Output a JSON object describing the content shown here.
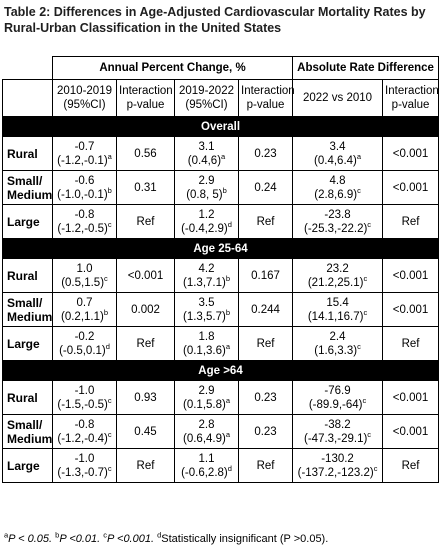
{
  "title": "Table 2: Differences in Age-Adjusted Cardiovascular Mortality Rates by Rural-Urban Classification in the United States",
  "header": {
    "group_apc": "Annual Percent Change, %",
    "group_ard": "Absolute Rate Difference",
    "col_2010_2019": "2010-2019 (95%CI)",
    "col_int_p1": "Interaction p-value",
    "col_2019_2022": "2019-2022 (95%CI)",
    "col_int_p2": "Interaction p-value",
    "col_2022_vs_2010": "2022 vs 2010",
    "col_int_p3": "Interaction p-value"
  },
  "sections": [
    {
      "name": "Overall",
      "rows": [
        {
          "label": "Rural",
          "apc1_est": "-0.7",
          "apc1_ci": "(-1.2,-0.1)",
          "apc1_sup": "a",
          "p1": "0.56",
          "apc2_est": "3.1",
          "apc2_ci": "(0.4,6)",
          "apc2_sup": "a",
          "p2": "0.23",
          "ard_est": "3.4",
          "ard_ci": "(0.4,6.4)",
          "ard_sup": "a",
          "p3": "<0.001"
        },
        {
          "label": "Small/ Medium",
          "apc1_est": "-0.6",
          "apc1_ci": "(-1.0,-0.1)",
          "apc1_sup": "b",
          "p1": "0.31",
          "apc2_est": "2.9",
          "apc2_ci": "(0.8, 5)",
          "apc2_sup": "b",
          "p2": "0.24",
          "ard_est": "4.8",
          "ard_ci": "(2.8,6.9)",
          "ard_sup": "c",
          "p3": "<0.001"
        },
        {
          "label": "Large",
          "apc1_est": "-0.8",
          "apc1_ci": "(-1.2,-0.5)",
          "apc1_sup": "c",
          "p1": "Ref",
          "apc2_est": "1.2",
          "apc2_ci": "(-0.4,2.9)",
          "apc2_sup": "d",
          "p2": "Ref",
          "ard_est": "-23.8",
          "ard_ci": "(-25.3,-22.2)",
          "ard_sup": "c",
          "p3": "Ref"
        }
      ]
    },
    {
      "name": "Age 25-64",
      "rows": [
        {
          "label": "Rural",
          "apc1_est": "1.0",
          "apc1_ci": "(0.5,1.5)",
          "apc1_sup": "c",
          "p1": "<0.001",
          "apc2_est": "4.2",
          "apc2_ci": "(1.3,7.1)",
          "apc2_sup": "b",
          "p2": "0.167",
          "ard_est": "23.2",
          "ard_ci": "(21.2,25.1)",
          "ard_sup": "c",
          "p3": "<0.001"
        },
        {
          "label": "Small/ Medium",
          "apc1_est": "0.7",
          "apc1_ci": "(0.2,1.1)",
          "apc1_sup": "b",
          "p1": "0.002",
          "apc2_est": "3.5",
          "apc2_ci": "(1.3,5.7)",
          "apc2_sup": "b",
          "p2": "0.244",
          "ard_est": "15.4",
          "ard_ci": "(14.1,16.7)",
          "ard_sup": "c",
          "p3": "<0.001"
        },
        {
          "label": "Large",
          "apc1_est": "-0.2",
          "apc1_ci": "(-0.5,0.1)",
          "apc1_sup": "d",
          "p1": "Ref",
          "apc2_est": "1.8",
          "apc2_ci": "(0.1,3.6)",
          "apc2_sup": "a",
          "p2": "Ref",
          "ard_est": "2.4",
          "ard_ci": "(1.6,3.3)",
          "ard_sup": "c",
          "p3": "Ref"
        }
      ]
    },
    {
      "name": "Age >64",
      "rows": [
        {
          "label": "Rural",
          "apc1_est": "-1.0",
          "apc1_ci": "(-1.5,-0.5)",
          "apc1_sup": "c",
          "p1": "0.93",
          "apc2_est": "2.9",
          "apc2_ci": "(0.1,5.8)",
          "apc2_sup": "a",
          "p2": "0.23",
          "ard_est": "-76.9",
          "ard_ci": "(-89.9,-64)",
          "ard_sup": "c",
          "p3": "<0.001"
        },
        {
          "label": "Small/ Medium",
          "apc1_est": "-0.8",
          "apc1_ci": "(-1.2,-0.4)",
          "apc1_sup": "c",
          "p1": "0.45",
          "apc2_est": "2.8",
          "apc2_ci": "(0.6,4.9)",
          "apc2_sup": "a",
          "p2": "0.23",
          "ard_est": "-38.2",
          "ard_ci": "(-47.3,-29.1)",
          "ard_sup": "c",
          "p3": "<0.001"
        },
        {
          "label": "Large",
          "apc1_est": "-1.0",
          "apc1_ci": "(-1.3,-0.7)",
          "apc1_sup": "c",
          "p1": "Ref",
          "apc2_est": "1.1",
          "apc2_ci": "(-0.6,2.8)",
          "apc2_sup": "d",
          "p2": "Ref",
          "ard_est": "-130.2",
          "ard_ci": "(-137.2,-123.2)",
          "ard_sup": "c",
          "p3": "Ref"
        }
      ]
    }
  ],
  "footnote": {
    "a_mark": "a",
    "a_text": "P < 0.05.",
    "b_mark": "b",
    "b_text": "P <0.01.",
    "c_mark": "c",
    "c_text": "P <0.001.",
    "d_mark": "d",
    "d_text": "Statistically insignificant (P >0.05)."
  }
}
